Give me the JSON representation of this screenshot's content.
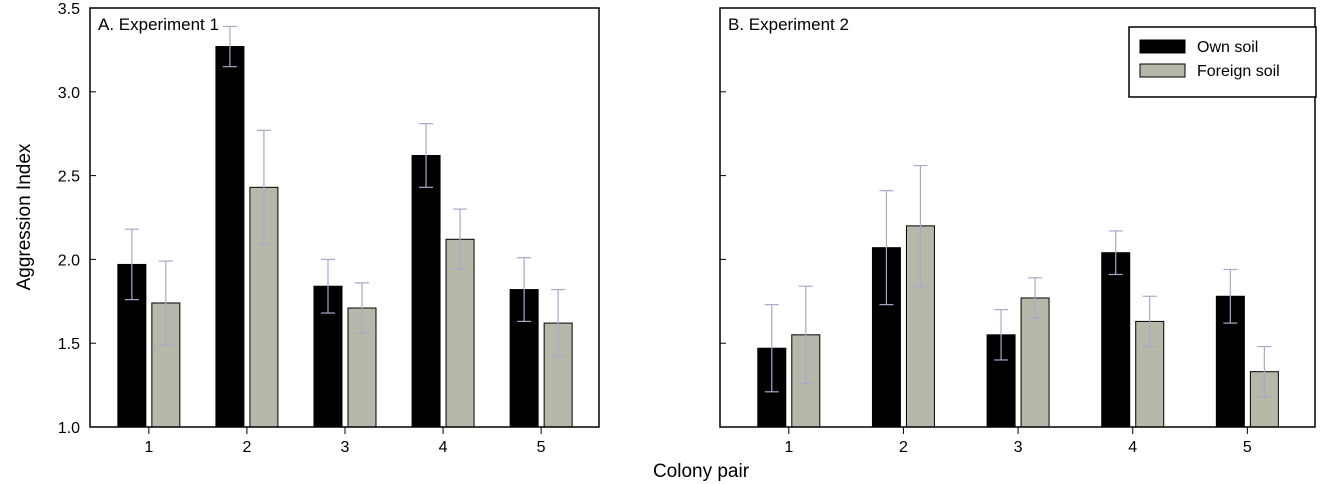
{
  "chart_data": {
    "type": "bar",
    "ylabel": "Aggression Index",
    "xlabel": "Colony pair",
    "ylim": [
      1.0,
      3.5
    ],
    "yticks": [
      "1.0",
      "1.5",
      "2.0",
      "2.5",
      "3.0",
      "3.5"
    ],
    "legend": {
      "placement": "top-right",
      "in_panel": 1
    },
    "colors": {
      "Own soil": "#000000",
      "Foreign soil": "#b7b8aa",
      "error_bar": "#a8a8c8"
    },
    "panels": [
      {
        "label": "A. Experiment 1",
        "categories": [
          "1",
          "2",
          "3",
          "4",
          "5"
        ],
        "series": [
          {
            "name": "Own soil",
            "values": [
              1.97,
              3.27,
              1.84,
              2.62,
              1.82
            ],
            "errors": [
              0.21,
              0.12,
              0.16,
              0.19,
              0.19
            ]
          },
          {
            "name": "Foreign soil",
            "values": [
              1.74,
              2.43,
              1.71,
              2.12,
              1.62
            ],
            "errors": [
              0.25,
              0.34,
              0.15,
              0.18,
              0.2
            ]
          }
        ]
      },
      {
        "label": "B. Experiment 2",
        "categories": [
          "1",
          "2",
          "3",
          "4",
          "5"
        ],
        "series": [
          {
            "name": "Own soil",
            "values": [
              1.47,
              2.07,
              1.55,
              2.04,
              1.78
            ],
            "errors": [
              0.26,
              0.34,
              0.15,
              0.13,
              0.16
            ]
          },
          {
            "name": "Foreign soil",
            "values": [
              1.55,
              2.2,
              1.77,
              1.63,
              1.33
            ],
            "errors": [
              0.29,
              0.36,
              0.12,
              0.15,
              0.15
            ]
          }
        ]
      }
    ]
  }
}
